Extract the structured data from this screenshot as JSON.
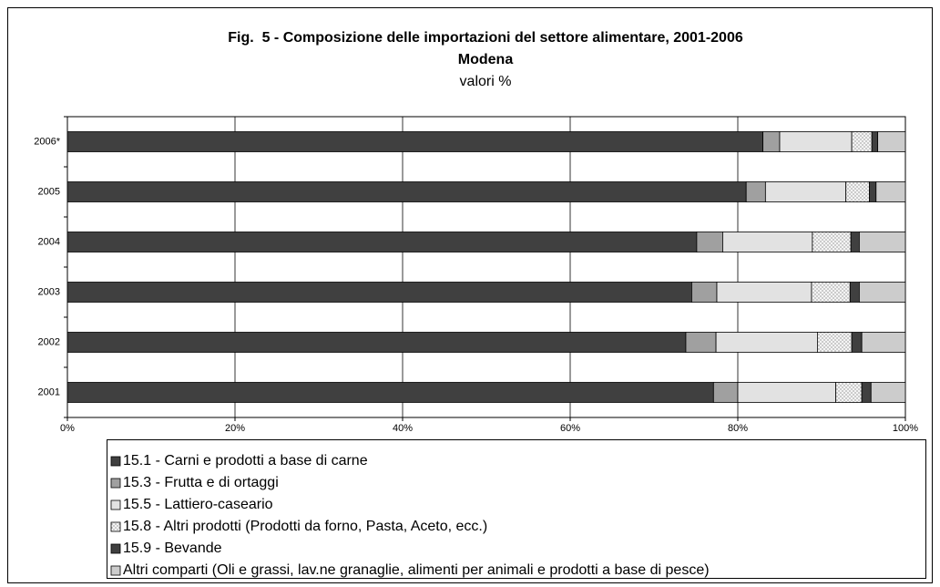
{
  "chart_data": {
    "type": "stacked_barh",
    "title": "Fig.  5 - Composizione delle importazioni del settore alimentare, 2001-2006",
    "subtitle": "Modena",
    "note": "valori %",
    "categories": [
      "2006*",
      "2005",
      "2004",
      "2003",
      "2002",
      "2001"
    ],
    "series": [
      {
        "name": "15.1 - Carni e prodotti a base di carne",
        "color": "#404040",
        "values": [
          83,
          81,
          75.1,
          74.5,
          73.8,
          77.1
        ]
      },
      {
        "name": "15.3 - Frutta e di ortaggi",
        "color": "#a0a0a0",
        "values": [
          2,
          2.3,
          3.1,
          3,
          3.6,
          2.9
        ]
      },
      {
        "name": "15.5 - Lattiero-caseario",
        "color": "#e2e2e2",
        "values": [
          8.6,
          9.6,
          10.7,
          11.3,
          12.1,
          11.7
        ]
      },
      {
        "name": "15.8 - Altri prodotti (Prodotti da forno, Pasta, Aceto, ecc.)",
        "color": "#f4f4f4",
        "pattern": "dots",
        "values": [
          2.4,
          2.8,
          4.6,
          4.6,
          4.1,
          3.1
        ]
      },
      {
        "name": "15.9 - Bevande",
        "color": "#404040",
        "values": [
          0.7,
          0.8,
          1,
          1.1,
          1.2,
          1.1
        ]
      },
      {
        "name": "Altri comparti (Oli e grassi, lav.ne granaglie, alimenti per animali e prodotti a base di pesce)",
        "color": "#cccccc",
        "values": [
          3.3,
          3.5,
          5.5,
          5.5,
          5.2,
          4.1
        ]
      }
    ],
    "xlim": [
      0,
      100
    ],
    "xticks": [
      {
        "value": 0,
        "label": "0%"
      },
      {
        "value": 20,
        "label": "20%"
      },
      {
        "value": 40,
        "label": "40%"
      },
      {
        "value": 60,
        "label": "60%"
      },
      {
        "value": 80,
        "label": "80%"
      },
      {
        "value": 100,
        "label": "100%"
      }
    ],
    "grid": true
  }
}
